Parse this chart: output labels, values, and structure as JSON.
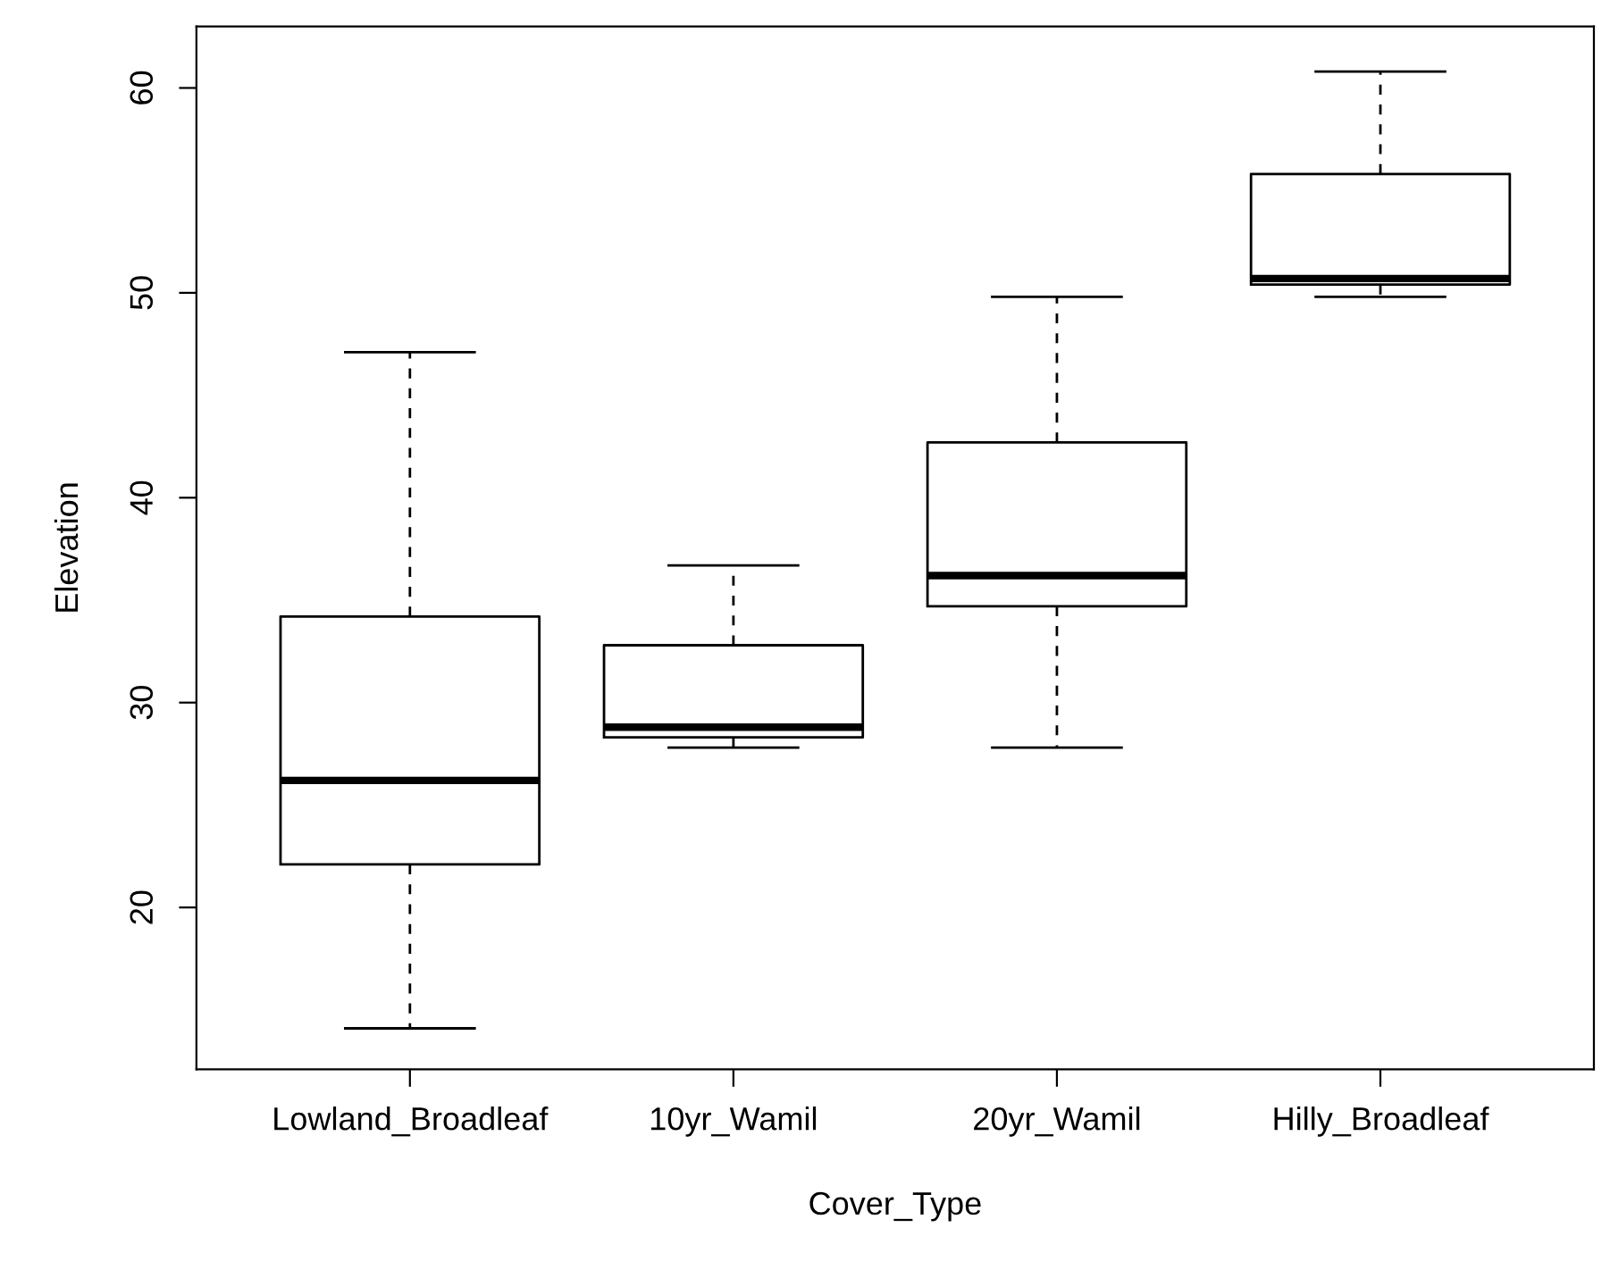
{
  "chart_data": {
    "type": "box",
    "xlabel": "Cover_Type",
    "ylabel": "Elevation",
    "categories": [
      "Lowland_Broadleaf",
      "10yr_Wamil",
      "20yr_Wamil",
      "Hilly_Broadleaf"
    ],
    "boxes": [
      {
        "low": 14.1,
        "q1": 22.1,
        "median": 26.2,
        "q3": 34.2,
        "high": 47.1
      },
      {
        "low": 27.8,
        "q1": 28.3,
        "median": 28.8,
        "q3": 32.8,
        "high": 36.7
      },
      {
        "low": 27.8,
        "q1": 34.7,
        "median": 36.2,
        "q3": 42.7,
        "high": 49.8
      },
      {
        "low": 49.8,
        "q1": 50.4,
        "median": 50.7,
        "q3": 55.8,
        "high": 60.8
      }
    ],
    "ylim": [
      12.1,
      63.0
    ],
    "yticks": [
      20,
      30,
      40,
      50,
      60
    ],
    "grid": false
  }
}
